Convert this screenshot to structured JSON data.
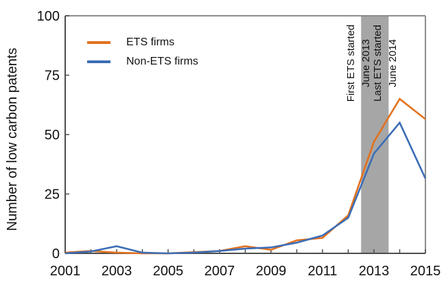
{
  "chart_data": {
    "type": "line",
    "title": "",
    "xlabel": "",
    "ylabel": "Number of low carbon patents",
    "x": [
      2001,
      2002,
      2003,
      2004,
      2005,
      2006,
      2007,
      2008,
      2009,
      2010,
      2011,
      2012,
      2013,
      2014,
      2015
    ],
    "xtick_labeled": [
      2001,
      2003,
      2005,
      2007,
      2009,
      2011,
      2013,
      2015
    ],
    "ylim": [
      0,
      100
    ],
    "yticks": [
      0,
      25,
      50,
      75,
      100
    ],
    "grid": false,
    "legend_position": "top-left",
    "series": [
      {
        "name": "ETS firms",
        "color": "#E2711D",
        "values": [
          0.3,
          1,
          0.3,
          0,
          0,
          0.5,
          1,
          3,
          1.5,
          5.5,
          6.5,
          16,
          47,
          65,
          56.5
        ]
      },
      {
        "name": "Non-ETS firms",
        "color": "#3C6DB5",
        "values": [
          0,
          0.8,
          3,
          0.3,
          0,
          0.3,
          1,
          2,
          2.5,
          4.5,
          7.5,
          15,
          42,
          55,
          31.5
        ]
      }
    ],
    "band": {
      "x_start": 2012.5,
      "x_end": 2013.57,
      "color": "#A6A6A6"
    },
    "annotations": [
      {
        "line1": "First ETS started",
        "line2": "June 2013"
      },
      {
        "line1": "Last ETS started",
        "line2": "June 2014"
      }
    ],
    "axis_color_main": "#4D4D4D",
    "axis_color_frame": "#8C8C8C"
  }
}
